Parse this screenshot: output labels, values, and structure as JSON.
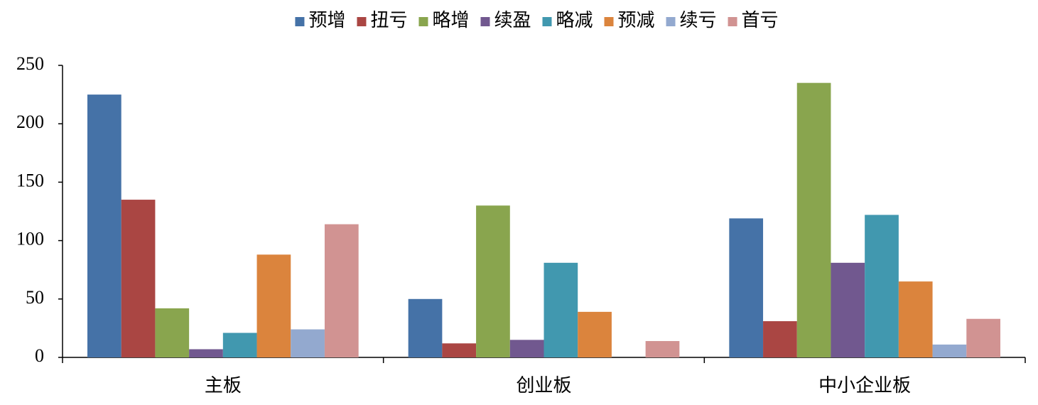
{
  "chart_data": {
    "type": "bar",
    "categories": [
      "主板",
      "创业板",
      "中小企业板"
    ],
    "series": [
      {
        "name": "预增",
        "color": "#4572a7",
        "values": [
          225,
          50,
          119
        ]
      },
      {
        "name": "扭亏",
        "color": "#aa4643",
        "values": [
          135,
          12,
          31
        ]
      },
      {
        "name": "略增",
        "color": "#89a54e",
        "values": [
          42,
          130,
          235
        ]
      },
      {
        "name": "续盈",
        "color": "#71588f",
        "values": [
          7,
          15,
          81
        ]
      },
      {
        "name": "略减",
        "color": "#4198af",
        "values": [
          21,
          81,
          122
        ]
      },
      {
        "name": "预减",
        "color": "#db843d",
        "values": [
          88,
          39,
          65
        ]
      },
      {
        "name": "续亏",
        "color": "#93a9cf",
        "values": [
          24,
          0,
          11
        ]
      },
      {
        "name": "首亏",
        "color": "#d19392",
        "values": [
          114,
          14,
          33
        ]
      }
    ],
    "ylim": [
      0,
      250
    ],
    "yticks": [
      0,
      50,
      100,
      150,
      200,
      250
    ],
    "grid": false,
    "legend": "top"
  }
}
